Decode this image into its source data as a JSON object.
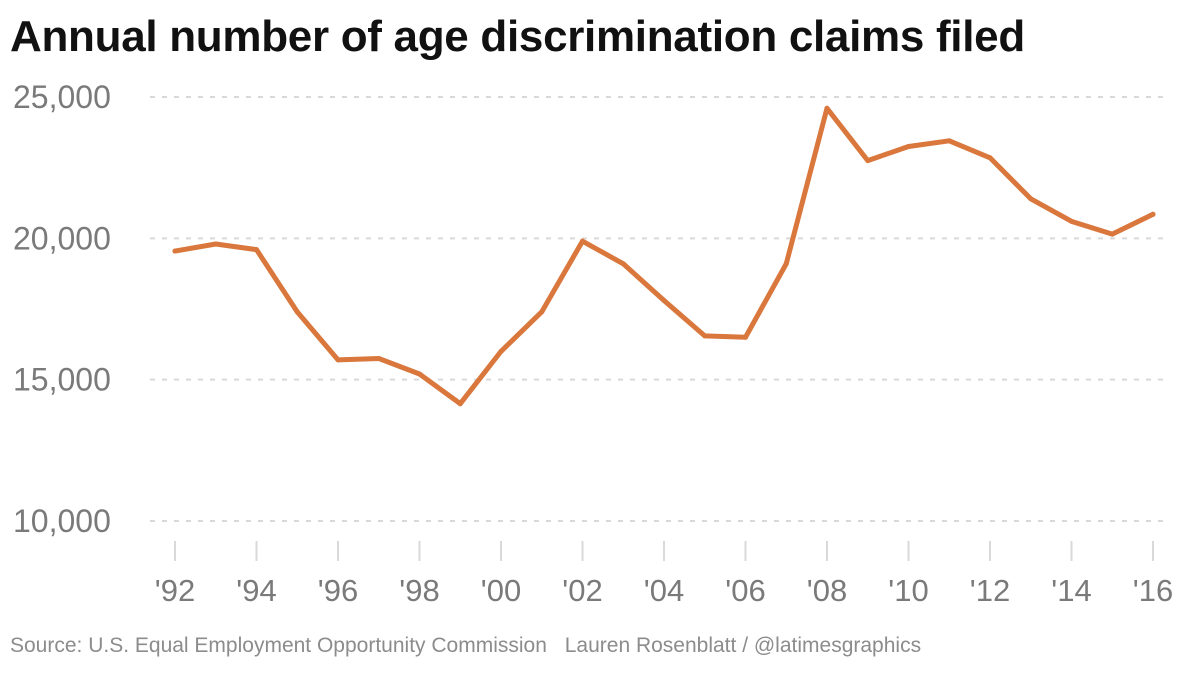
{
  "chart_data": {
    "type": "line",
    "title": "Annual number of age discrimination claims filed",
    "x": [
      1992,
      1993,
      1994,
      1995,
      1996,
      1997,
      1998,
      1999,
      2000,
      2001,
      2002,
      2003,
      2004,
      2005,
      2006,
      2007,
      2008,
      2009,
      2010,
      2011,
      2012,
      2013,
      2014,
      2015,
      2016
    ],
    "series": [
      {
        "name": "",
        "values": [
          19550,
          19800,
          19600,
          17400,
          15700,
          15750,
          15200,
          14150,
          16000,
          17400,
          19900,
          19100,
          17800,
          16550,
          16500,
          19100,
          24600,
          22750,
          23250,
          23450,
          22850,
          21400,
          20600,
          20150,
          20850
        ],
        "color": "#d9773c"
      }
    ],
    "ylim": [
      10000,
      25000
    ],
    "yticks": [
      10000,
      15000,
      20000,
      25000
    ],
    "ytick_labels": [
      "10,000",
      "15,000",
      "20,000",
      "25,000"
    ],
    "xticks": [
      1992,
      1994,
      1996,
      1998,
      2000,
      2002,
      2004,
      2006,
      2008,
      2010,
      2012,
      2014,
      2016
    ],
    "xtick_labels": [
      "'92",
      "'94",
      "'96",
      "'98",
      "'00",
      "'02",
      "'04",
      "'06",
      "'08",
      "'10",
      "'12",
      "'14",
      "'16"
    ],
    "xlabel": "",
    "ylabel": "",
    "grid": true,
    "colors": {
      "line": "#d9773c",
      "grid": "#d9d9d9",
      "tick_text": "#7a7a7a",
      "title": "#111111"
    }
  },
  "footer": {
    "source": "Source: U.S. Equal Employment Opportunity Commission",
    "credit": "Lauren Rosenblatt / @latimesgraphics"
  }
}
